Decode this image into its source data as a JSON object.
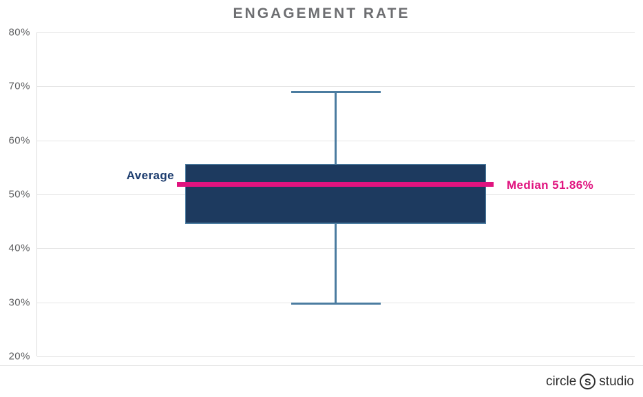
{
  "title": "ENGAGEMENT RATE",
  "chart_data": {
    "type": "boxplot",
    "title": "ENGAGEMENT RATE",
    "ylim": [
      20,
      80
    ],
    "yticks": [
      80,
      70,
      60,
      50,
      40,
      30,
      20
    ],
    "ytick_suffix": "%",
    "grid": "horizontal",
    "legend": "none",
    "series": [
      {
        "name": "Engagement Rate",
        "min": 29.8,
        "q1": 44.5,
        "median": 51.86,
        "q3": 55.6,
        "max": 69.0,
        "average": 53.5
      }
    ],
    "annotations": [
      {
        "text": "Average",
        "target": "box",
        "side": "left"
      },
      {
        "text": "Median 51.86%",
        "target": "median-line",
        "side": "right"
      }
    ]
  },
  "labels": {
    "average": "Average",
    "median": "Median 51.86%"
  },
  "colors": {
    "box": "#1d3a5f",
    "whisker": "#4b7ca0",
    "median_line": "#e0147f",
    "median_label": "#e0147f",
    "average_label": "#1c3c6e",
    "grid": "#e6e6e6",
    "axis_text": "#5f6062",
    "title": "#6d6e71"
  },
  "footer": {
    "logo_word_1": "circle",
    "logo_s": "S",
    "logo_word_2": "studio"
  }
}
